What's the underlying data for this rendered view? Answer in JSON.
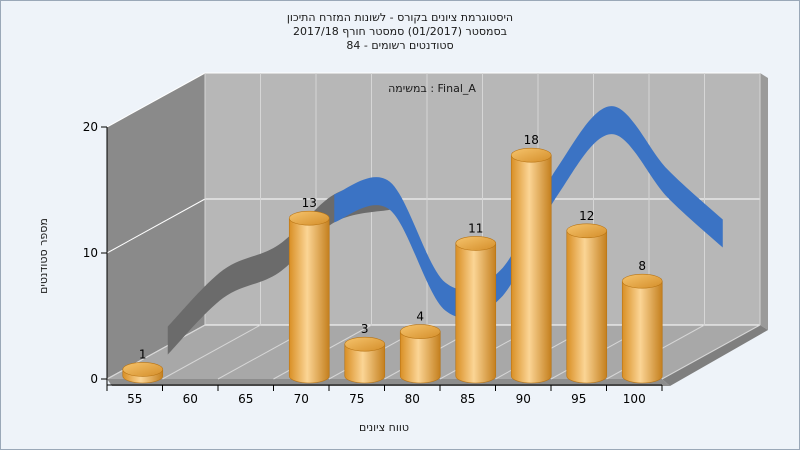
{
  "chart_data": {
    "type": "bar",
    "title_lines": [
      "היסטוגרמת ציונים בקורס - לשונות המזרח התיכון",
      "בסמסטר  (01/2017)  סמסטר חורף  2017/18",
      "סטודנטים רשומים - 84"
    ],
    "subtitle": "במשימה : Final_A",
    "xlabel": "טווח ציונים",
    "ylabel": "מספר סטודנטים",
    "ylim": [
      0,
      20
    ],
    "yticks": [
      0,
      10,
      20
    ],
    "categories": [
      "55",
      "60",
      "65",
      "70",
      "75",
      "80",
      "85",
      "90",
      "95",
      "100"
    ],
    "values": [
      1,
      0,
      0,
      13,
      3,
      4,
      11,
      18,
      12,
      8
    ],
    "data_labels": [
      "1",
      "",
      "",
      "13",
      "3",
      "4",
      "11",
      "18",
      "12",
      "8"
    ],
    "trend_line": [
      1.5,
      6,
      8,
      12,
      13,
      5,
      6,
      14,
      19,
      14,
      10
    ],
    "grid": true,
    "colors": {
      "bar": "#e8a640",
      "trend_front": "#3b73c4",
      "trend_back": "#6b6b6b",
      "back_wall": "#b7b7b7",
      "side_wall": "#8a8a8a",
      "floor": "#a8a8a8"
    }
  }
}
